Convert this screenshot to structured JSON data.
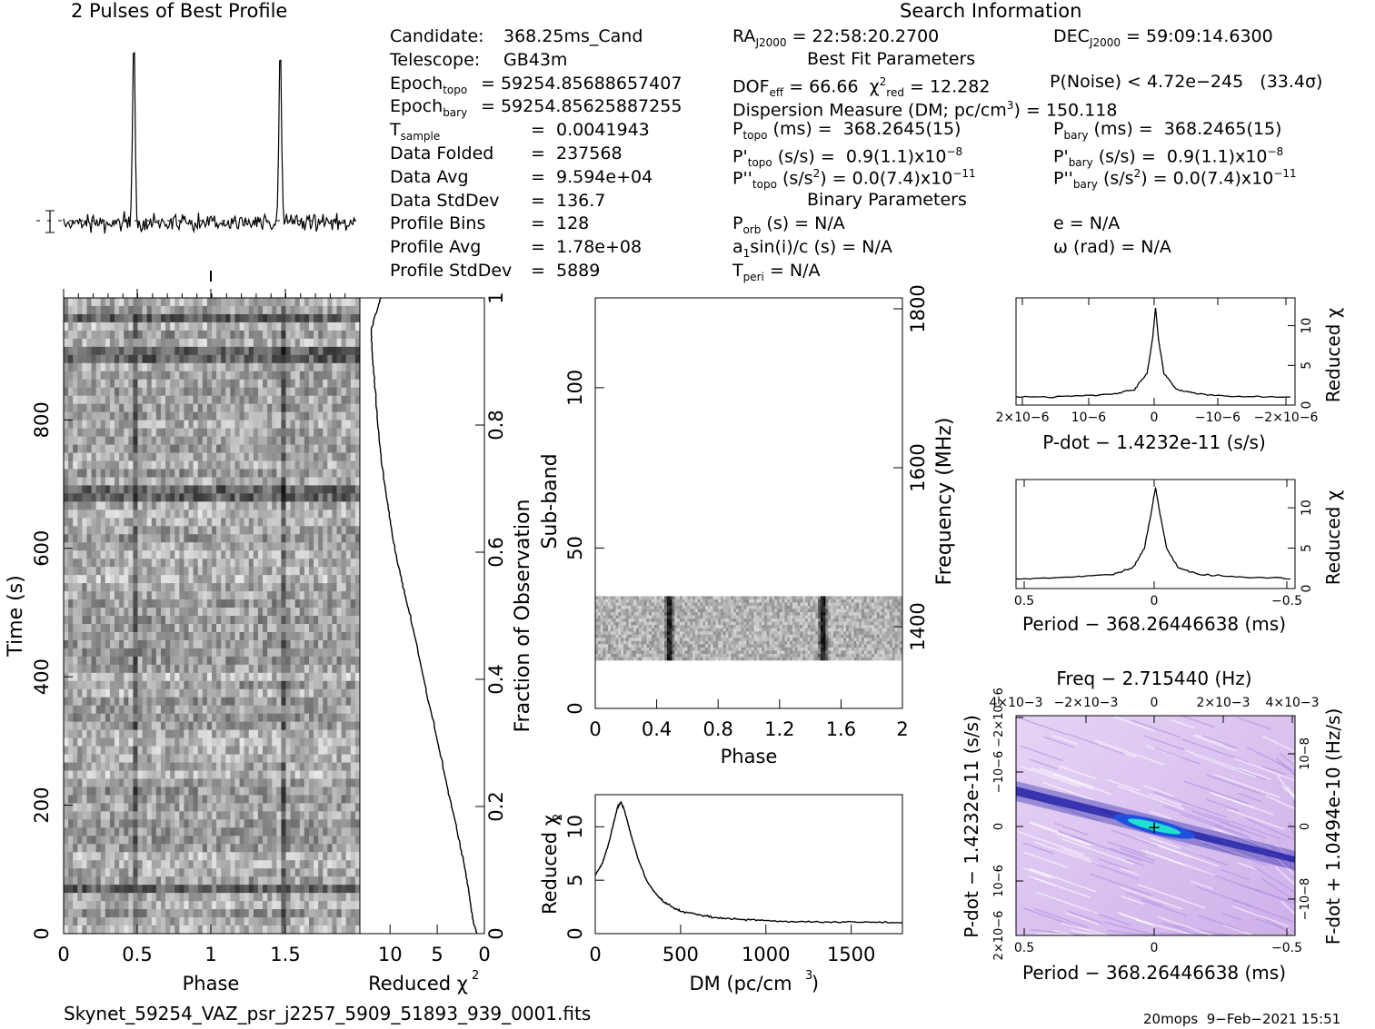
{
  "profile_title": "2 Pulses of Best Profile",
  "search_title": "Search Information",
  "candidate_info": [
    {
      "label": "Candidate:",
      "value": "368.25ms_Cand"
    },
    {
      "label": "Telescope:",
      "value": "GB43m"
    },
    {
      "label": "Epoch",
      "sub": "topo",
      "value": "= 59254.85688657407"
    },
    {
      "label": "Epoch",
      "sub": "bary",
      "value": "= 59254.85625887255"
    },
    {
      "label": "T",
      "sub": "sample",
      "value": "=  0.0041943"
    },
    {
      "label": "Data Folded",
      "value": "=  237568"
    },
    {
      "label": "Data Avg",
      "value": "=  9.594e+04"
    },
    {
      "label": "Data StdDev",
      "value": "=  136.7"
    },
    {
      "label": "Profile Bins",
      "value": "=  128"
    },
    {
      "label": "Profile Avg",
      "value": "=  1.78e+08"
    },
    {
      "label": "Profile StdDev",
      "value": "=  5889"
    }
  ],
  "search_info": {
    "ra": "= 22:58:20.2700",
    "dec": "= 59:09:14.6300",
    "best_fit_title": "Best Fit Parameters",
    "dof": "= 66.66",
    "chi2": "= 12.282",
    "pnoise": "P(Noise) < 4.72e−245   (33.4σ)",
    "dm": "Dispersion Measure (DM; pc/cm",
    "dm_value": ") = 150.118",
    "ptopo": "(ms) =  368.2645(15)",
    "pbary": "(ms) =  368.2465(15)",
    "pdtopo": "(s/s) =  0.9(1.1)x10",
    "pdbary": "(s/s) =  0.9(1.1)x10",
    "pdexp": "−8",
    "pddtopo": "(s/s",
    "pddval": ") = 0.0(7.4)x10",
    "pddexp": "−11",
    "binary_title": "Binary Parameters",
    "porb": "(s) = N/A",
    "ecc": "e = N/A",
    "asini": "sin(i)/c (s) = N/A",
    "omega": "ω (rad) = N/A",
    "tperi": "= N/A"
  },
  "footer": {
    "filename": "Skynet_59254_VAZ_psr_j2257_5909_51893_939_0001.fits",
    "stamp": "20mops  9−Feb−2021 15:51"
  },
  "colors": {
    "ink": "#000000",
    "ppdot_bg": "#d8b8ee",
    "ppdot_band": "#1010a0",
    "ppdot_peak": "#20e0d0"
  },
  "chart_data": [
    {
      "name": "time-phase",
      "type": "heatmap",
      "xlabel": "Phase",
      "ylabel": "Time (s)",
      "xlim": [
        0,
        2
      ],
      "ylim": [
        0,
        990
      ],
      "xticks": [
        "0",
        "0.5",
        "1",
        "1.5"
      ],
      "yticks": [
        "0",
        "200",
        "400",
        "600",
        "800"
      ]
    },
    {
      "name": "reduced-chi2-vs-time",
      "type": "line",
      "xlabel": "Reduced χ",
      "ylabel": "Fraction of Observation",
      "xticks": [
        "10",
        "5",
        "0"
      ],
      "yticks": [
        "0",
        "0.2",
        "0.4",
        "0.6",
        "0.8",
        "1"
      ],
      "x": [
        0.8,
        1.2,
        1.5,
        1.8,
        2.3,
        3.0,
        3.8,
        4.5,
        5.2,
        6.0,
        6.7,
        7.4,
        8.2,
        9.0,
        9.7,
        10.3,
        10.9,
        11.3,
        11.6,
        11.9,
        12.0,
        11.4,
        11.0
      ],
      "y": [
        0.0,
        0.02,
        0.05,
        0.08,
        0.12,
        0.17,
        0.22,
        0.27,
        0.32,
        0.37,
        0.42,
        0.47,
        0.52,
        0.57,
        0.62,
        0.68,
        0.74,
        0.8,
        0.86,
        0.91,
        0.95,
        0.98,
        1.0
      ]
    },
    {
      "name": "subband-phase",
      "type": "heatmap",
      "xlabel": "Phase",
      "ylabel": "Sub-band",
      "y2label": "Frequency (MHz)",
      "xticks": [
        "0",
        "0.4",
        "0.8",
        "1.2",
        "1.6",
        "2"
      ],
      "yticks": [
        "0",
        "50",
        "100"
      ],
      "y2ticks": [
        "1400",
        "1600",
        "1800"
      ],
      "filled_subbands": [
        15,
        35
      ],
      "pulse_phases": [
        0.48,
        1.48
      ]
    },
    {
      "name": "dm-curve",
      "type": "line",
      "xlabel": "DM (pc/cm",
      "ylabel": "Reduced χ",
      "xlim": [
        0,
        1800
      ],
      "ylim": [
        0,
        13
      ],
      "xticks": [
        "0",
        "500",
        "1000",
        "1500"
      ],
      "yticks": [
        "0",
        "5",
        "10"
      ],
      "x": [
        0,
        40,
        80,
        110,
        130,
        150,
        170,
        200,
        250,
        300,
        350,
        400,
        450,
        500,
        600,
        700,
        800,
        900,
        1000,
        1200,
        1400,
        1600,
        1800
      ],
      "y": [
        5.5,
        6.5,
        8.5,
        10.5,
        11.8,
        12.3,
        11.6,
        9.8,
        7.0,
        5.0,
        3.8,
        3.0,
        2.5,
        2.1,
        1.8,
        1.5,
        1.4,
        1.3,
        1.2,
        1.1,
        1.1,
        1.1,
        1.0
      ]
    },
    {
      "name": "pdot-curve",
      "type": "line",
      "xlabel": "P-dot − 1.4232e-11 (s/s)",
      "ylabel": "Reduced χ",
      "xticks": [
        "2×10−6",
        "10−6",
        "0",
        "−10−6",
        "−2×10−6"
      ],
      "yticks": [
        "0",
        "5",
        "10"
      ],
      "x": [
        -1.0,
        -0.6,
        -0.3,
        -0.15,
        -0.06,
        -0.02,
        0,
        0.02,
        0.06,
        0.15,
        0.3,
        0.6,
        1.0
      ],
      "y": [
        1.0,
        1.1,
        1.4,
        2.0,
        4.0,
        8.5,
        12.3,
        8.5,
        4.0,
        2.0,
        1.4,
        1.1,
        1.0
      ]
    },
    {
      "name": "period-curve",
      "type": "line",
      "xlabel": "Period − 368.26446638 (ms)",
      "ylabel": "Reduced χ",
      "xticks": [
        "0.5",
        "0",
        "−0.5"
      ],
      "yticks": [
        "0",
        "5",
        "10"
      ],
      "x": [
        0.5,
        0.3,
        0.15,
        0.08,
        0.04,
        0.015,
        0,
        -0.015,
        -0.04,
        -0.08,
        -0.15,
        -0.3,
        -0.5
      ],
      "y": [
        1.2,
        1.4,
        1.8,
        2.6,
        5.0,
        9.5,
        12.5,
        9.5,
        5.0,
        2.6,
        1.8,
        1.4,
        1.2
      ]
    },
    {
      "name": "period-pdot",
      "type": "heatmap",
      "title": "Freq − 2.715440 (Hz)",
      "xlabel": "Period − 368.26446638 (ms)",
      "ylabel": "P-dot − 1.4232e-11 (s/s)",
      "y2label": "F-dot + 1.0494e-10 (Hz/s)",
      "xticks": [
        "0.5",
        "0",
        "−0.5"
      ],
      "x2ticks": [
        "4×10−3",
        "−2×10−3",
        "0",
        "2×10−3",
        "4×10−3"
      ],
      "yticks": [
        "2×10−6",
        "10−6",
        "0",
        "−10−6",
        "−2×10−6"
      ]
    }
  ]
}
